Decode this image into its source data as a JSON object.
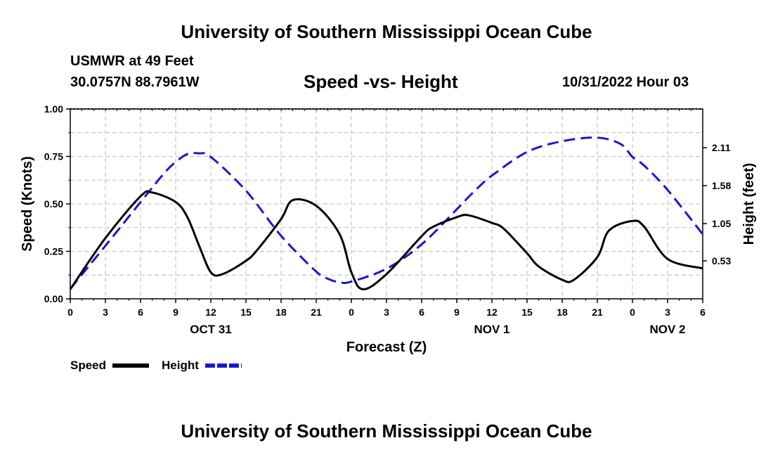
{
  "chart_data": {
    "type": "line",
    "title": "University of Southern Mississippi Ocean Cube",
    "bottom_title": "University of Southern Mississippi Ocean Cube",
    "station": "USMWR at 49 Feet",
    "coords": "30.0757N  88.7961W",
    "subtitle": "Speed -vs- Height",
    "datetime": "10/31/2022 Hour 03",
    "xlabel": "Forecast (Z)",
    "ylabel_left": "Speed (Knots)",
    "ylabel_right": "Height (feet)",
    "x_range": [
      0,
      54
    ],
    "ylim_left": [
      0,
      1.0
    ],
    "ylim_right": [
      0,
      2.65
    ],
    "x_ticks": [
      0,
      3,
      6,
      9,
      12,
      15,
      18,
      21,
      24,
      27,
      30,
      33,
      36,
      39,
      42,
      45,
      48,
      51,
      54
    ],
    "x_tick_labels": [
      "0",
      "3",
      "6",
      "9",
      "12",
      "15",
      "18",
      "21",
      "0",
      "3",
      "6",
      "9",
      "12",
      "15",
      "18",
      "21",
      "0",
      "3",
      "6"
    ],
    "y_left_ticks": [
      "0.00",
      "0.25",
      "0.50",
      "0.75",
      "1.00"
    ],
    "y_left_tick_values": [
      0,
      0.25,
      0.5,
      0.75,
      1.0
    ],
    "y_right_ticks": [
      "0.53",
      "1.05",
      "1.58",
      "2.11"
    ],
    "y_right_tick_values": [
      0.53,
      1.05,
      1.58,
      2.11
    ],
    "date_labels": [
      {
        "x": 12,
        "label": "OCT 31"
      },
      {
        "x": 36,
        "label": "NOV 1"
      },
      {
        "x": 51,
        "label": "NOV 2"
      }
    ],
    "grid": true,
    "legend": [
      {
        "name": "Speed",
        "color": "#000000",
        "style": "solid"
      },
      {
        "name": "Height",
        "color": "#1a1acc",
        "style": "dashed"
      }
    ],
    "series": [
      {
        "name": "Speed",
        "axis": "left",
        "color": "#000000",
        "dash": "solid",
        "x": [
          0,
          3,
          6,
          7,
          9,
          10,
          11,
          12,
          13,
          15,
          16,
          18,
          19,
          21,
          23,
          24,
          25,
          27,
          30,
          31,
          33,
          34,
          36,
          37,
          39,
          40,
          42,
          43,
          45,
          46,
          48,
          49,
          51,
          54
        ],
        "y": [
          0.05,
          0.32,
          0.54,
          0.56,
          0.51,
          0.43,
          0.28,
          0.14,
          0.13,
          0.2,
          0.26,
          0.42,
          0.52,
          0.49,
          0.34,
          0.14,
          0.05,
          0.13,
          0.33,
          0.38,
          0.43,
          0.44,
          0.4,
          0.37,
          0.24,
          0.17,
          0.1,
          0.1,
          0.22,
          0.36,
          0.41,
          0.38,
          0.21,
          0.16
        ]
      },
      {
        "name": "Height",
        "axis": "right",
        "color": "#1a1acc",
        "dash": "dashed",
        "x": [
          0,
          3,
          6,
          8,
          9,
          10,
          11,
          12,
          15,
          18,
          21,
          22,
          23,
          24,
          27,
          30,
          33,
          34,
          35,
          36,
          39,
          42,
          45,
          47,
          48,
          49,
          51,
          54
        ],
        "y": [
          0.14,
          0.74,
          1.35,
          1.75,
          1.91,
          2.02,
          2.03,
          1.98,
          1.51,
          0.88,
          0.38,
          0.28,
          0.23,
          0.24,
          0.42,
          0.76,
          1.25,
          1.42,
          1.58,
          1.72,
          2.05,
          2.2,
          2.25,
          2.16,
          1.98,
          1.86,
          1.52,
          0.9
        ]
      }
    ]
  }
}
